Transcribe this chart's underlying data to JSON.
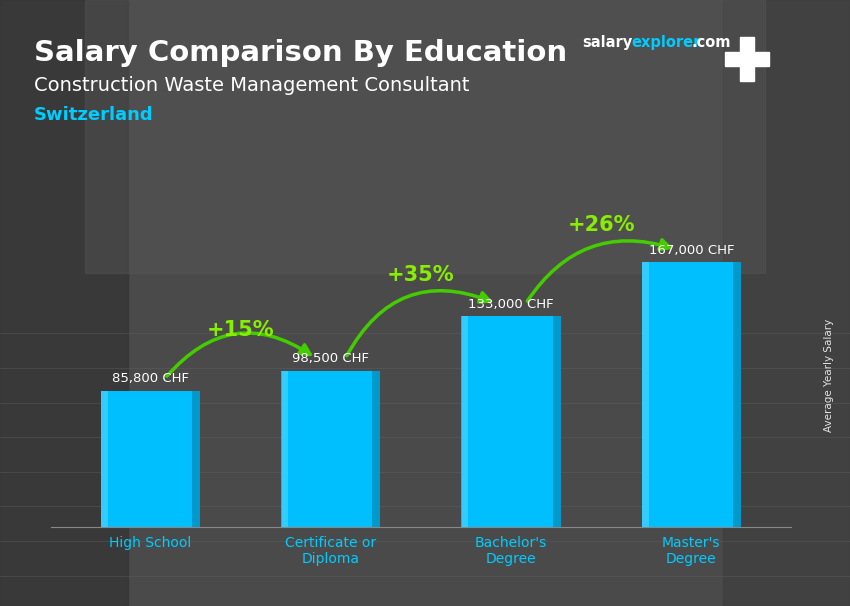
{
  "title_line1": "Salary Comparison By Education",
  "title_line2": "Construction Waste Management Consultant",
  "subtitle": "Switzerland",
  "ylabel_rotated": "Average Yearly Salary",
  "categories": [
    "High School",
    "Certificate or\nDiploma",
    "Bachelor's\nDegree",
    "Master's\nDegree"
  ],
  "values": [
    85800,
    98500,
    133000,
    167000
  ],
  "value_labels": [
    "85,800 CHF",
    "98,500 CHF",
    "133,000 CHF",
    "167,000 CHF"
  ],
  "bar_color_main": "#00BFFF",
  "bar_color_light": "#33CCFF",
  "bar_color_dark": "#0099CC",
  "pct_labels": [
    "+15%",
    "+35%",
    "+26%"
  ],
  "pct_arcs": [
    {
      "from": 0,
      "to": 1,
      "label": "+15%",
      "rad": -0.45
    },
    {
      "from": 1,
      "to": 2,
      "label": "+35%",
      "rad": -0.45
    },
    {
      "from": 2,
      "to": 3,
      "label": "+26%",
      "rad": -0.38
    }
  ],
  "pct_color": "#88EE00",
  "arrow_color": "#44CC00",
  "title_color": "#FFFFFF",
  "subtitle_color": "#00CCFF",
  "value_label_color": "#FFFFFF",
  "tick_label_color": "#00CCFF",
  "bg_color": "#3a3a3a",
  "bar_width": 0.55,
  "ylim": [
    0,
    210000
  ],
  "flag_bg": "#CC0000",
  "salary_color_salary": "#FFFFFF",
  "salary_color_explorer": "#00CCFF",
  "salary_color_com": "#FFFFFF"
}
